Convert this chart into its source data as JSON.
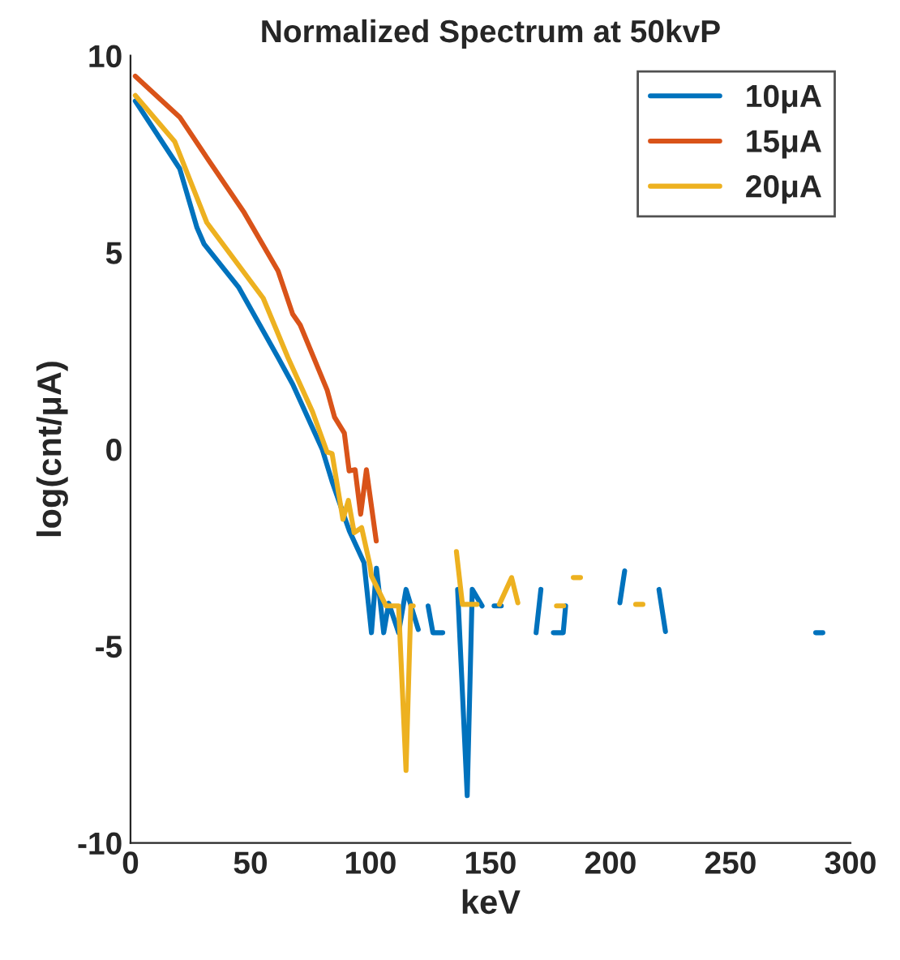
{
  "chart_data": {
    "type": "line",
    "title": "Normalized Spectrum at 50kvP",
    "xlabel": "keV",
    "ylabel": "log(cnt/μA)",
    "xlim": [
      0,
      300
    ],
    "xticks": [
      0,
      50,
      100,
      150,
      200,
      250,
      300
    ],
    "ylim": [
      -10,
      10
    ],
    "yticks": [
      -10,
      -5,
      0,
      5,
      10
    ],
    "grid": false,
    "legend": "top right",
    "marker": "none",
    "line_style": "solid",
    "series": [
      {
        "name": "10μA",
        "color": "#0072bd",
        "x": [
          2,
          20.5,
          27.7,
          30.7,
          45,
          61.5,
          67.6,
          79.9,
          84,
          91.1,
          97.3,
          100.4,
          102.5,
          105.5,
          107.6,
          111.7,
          114.8,
          119.9,
          121,
          124,
          126,
          130.1,
          131,
          136.3,
          140.3,
          142.4,
          146.5,
          147.5,
          151.5,
          154.5,
          160,
          169,
          171,
          172,
          176.2,
          180.3,
          181.3,
          190,
          203.9,
          205.9,
          210,
          220.2,
          222.9,
          230,
          285.5,
          288.5
        ],
        "values": [
          8.85,
          7.13,
          5.63,
          5.21,
          4.12,
          2.33,
          1.65,
          0,
          -0.82,
          -2.06,
          -2.88,
          -4.66,
          -3.02,
          -4.66,
          -3.91,
          -4.66,
          -3.56,
          -4.58,
          null,
          -3.98,
          -4.66,
          -4.66,
          null,
          -3.56,
          -8.8,
          -3.56,
          -3.98,
          null,
          -3.98,
          -3.98,
          null,
          -4.66,
          -3.56,
          null,
          -4.66,
          -4.66,
          -3.98,
          null,
          -3.9,
          -3.09,
          null,
          -3.56,
          -4.63,
          null,
          -4.66,
          -4.66
        ]
      },
      {
        "name": "15μA",
        "color": "#d95319",
        "x": [
          2,
          20.5,
          31.8,
          47.1,
          61.5,
          67.6,
          70.7,
          81.9,
          85,
          89.1,
          91.1,
          93.6,
          95.9,
          98.3,
          102.4
        ],
        "values": [
          9.48,
          8.44,
          7.41,
          6.04,
          4.53,
          3.43,
          3.16,
          1.51,
          0.82,
          0.41,
          -0.55,
          -0.52,
          -1.65,
          -0.52,
          -2.33
        ]
      },
      {
        "name": "20μA",
        "color": "#edb120",
        "x": [
          2,
          18.4,
          31.8,
          55.3,
          65.6,
          75.8,
          81.9,
          84,
          88.5,
          90.8,
          93.2,
          96.3,
          99.8,
          100.4,
          106.5,
          111.7,
          114.8,
          116.8,
          117.8,
          125,
          135.8,
          138.3,
          144.4,
          148,
          153.7,
          158.8,
          161.4,
          170,
          177.5,
          180.5,
          183,
          184.5,
          187.5,
          200,
          210.5,
          213.5
        ],
        "values": [
          8.99,
          7.82,
          5.76,
          3.84,
          2.33,
          0.96,
          -0.07,
          -0.11,
          -1.78,
          -1.3,
          -2.12,
          -1.99,
          -2.95,
          -3.22,
          -3.98,
          -3.98,
          -8.16,
          -3.98,
          -3.98,
          null,
          -2.6,
          -3.94,
          -3.94,
          null,
          -3.94,
          -3.26,
          -3.9,
          null,
          -3.98,
          -3.98,
          null,
          -3.26,
          -3.26,
          null,
          -3.94,
          -3.94
        ]
      }
    ]
  }
}
